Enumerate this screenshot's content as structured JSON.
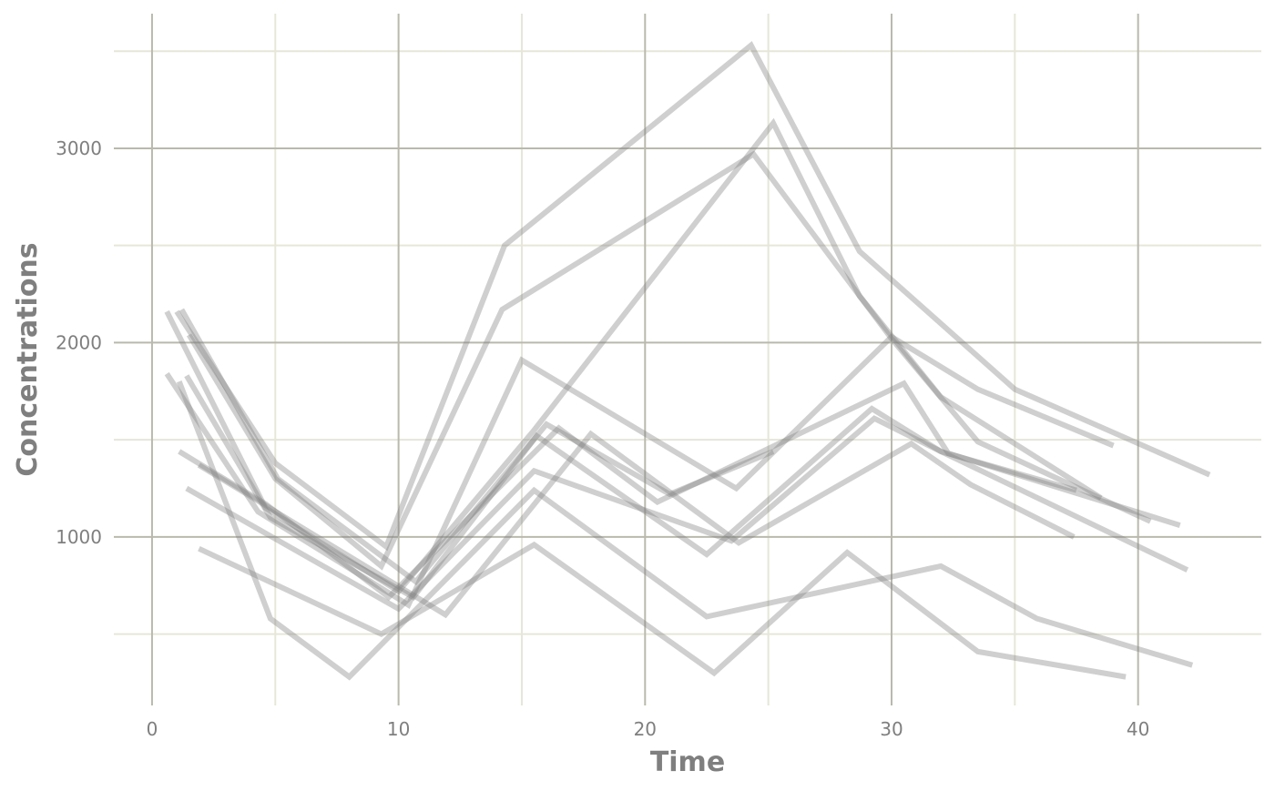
{
  "chart_data": {
    "type": "line",
    "x_label": "Time",
    "y_label": "Concentrations",
    "xlim": [
      -1.55,
      45
    ],
    "ylim": [
      133,
      3693
    ],
    "xticks": [
      0,
      10,
      20,
      30,
      40
    ],
    "yticks": [
      1000,
      2000,
      3000
    ],
    "x_minor_ticks": [
      5,
      15,
      25,
      35
    ],
    "y_minor_ticks": [
      500,
      1500,
      2500,
      3500
    ],
    "grid": true,
    "color": "#808080",
    "opacity": 0.38,
    "series": [
      {
        "x": [
          1.0,
          5.0,
          9.5,
          14.3,
          24.3,
          28.7,
          35.0,
          42.9
        ],
        "values": [
          2160,
          1380,
          950,
          2500,
          3530,
          2470,
          1760,
          1320
        ]
      },
      {
        "x": [
          0.6,
          4.6,
          10.0,
          15.5,
          25.2,
          28.7,
          32.0,
          38.5
        ],
        "values": [
          2160,
          1150,
          720,
          1550,
          3130,
          2240,
          1720,
          1200
        ]
      },
      {
        "x": [
          1.5,
          5.0,
          9.3,
          14.2,
          24.4,
          30.0,
          33.5,
          40.5
        ],
        "values": [
          2040,
          1300,
          850,
          2170,
          2970,
          2020,
          1490,
          1080
        ]
      },
      {
        "x": [
          0.6,
          4.3,
          10.4,
          15.0,
          23.7,
          30.0,
          33.5,
          39.0
        ],
        "values": [
          1840,
          1130,
          650,
          1910,
          1250,
          2030,
          1760,
          1470
        ]
      },
      {
        "x": [
          1.4,
          4.8,
          10.6,
          15.6,
          22.5,
          29.2,
          32.0,
          42.0
        ],
        "values": [
          1830,
          1100,
          690,
          1520,
          910,
          1660,
          1440,
          830
        ]
      },
      {
        "x": [
          1.1,
          4.6,
          9.6,
          16.5,
          20.5,
          30.5,
          32.3,
          41.7
        ],
        "values": [
          1440,
          1170,
          690,
          1560,
          1180,
          1790,
          1430,
          1060
        ]
      },
      {
        "x": [
          1.4,
          10.0,
          15.5,
          23.5,
          29.3,
          32.0,
          37.5
        ],
        "values": [
          1250,
          630,
          1340,
          980,
          1610,
          1440,
          1240
        ]
      },
      {
        "x": [
          1.9,
          11.9,
          17.8,
          23.8,
          30.8,
          33.2,
          37.4
        ],
        "values": [
          1370,
          600,
          1530,
          970,
          1480,
          1270,
          1000
        ]
      },
      {
        "x": [
          1.1,
          4.8,
          8.0,
          15.5,
          22.5,
          32.0,
          35.9,
          42.2
        ],
        "values": [
          1800,
          580,
          280,
          1240,
          590,
          850,
          580,
          340
        ]
      },
      {
        "x": [
          1.9,
          9.3,
          15.5,
          22.8,
          28.2,
          33.5,
          39.5
        ],
        "values": [
          940,
          500,
          960,
          300,
          920,
          410,
          280
        ]
      },
      {
        "x": [
          1.2,
          5.1,
          10.7,
          16.0,
          21.0,
          25.2
        ],
        "values": [
          2170,
          1300,
          770,
          1580,
          1220,
          1440
        ]
      }
    ]
  }
}
